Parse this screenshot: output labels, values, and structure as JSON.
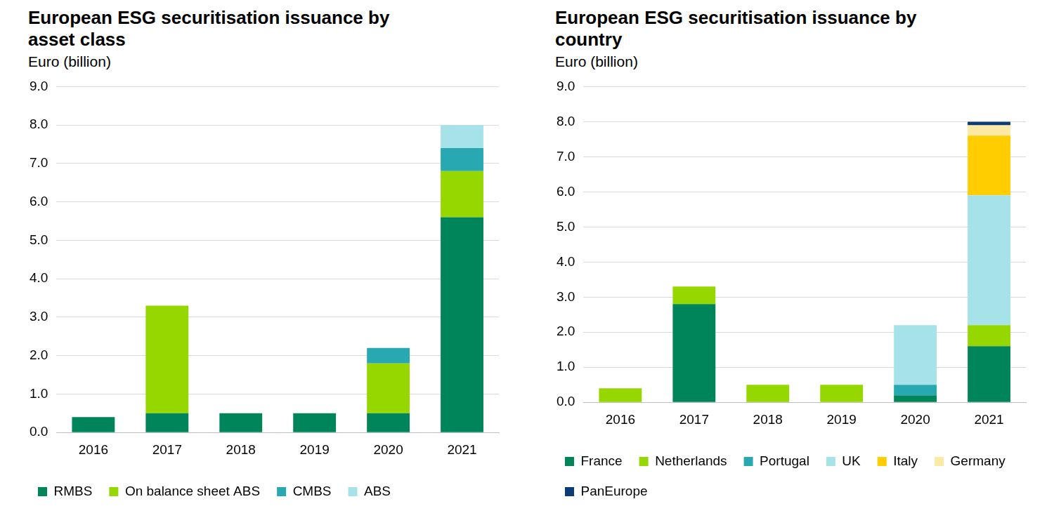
{
  "chart_data": [
    {
      "type": "bar",
      "title": "European ESG securitisation issuance by asset class",
      "subtitle": "Euro (billion)",
      "categories": [
        "2016",
        "2017",
        "2018",
        "2019",
        "2020",
        "2021"
      ],
      "series": [
        {
          "name": "RMBS",
          "color": "#00845a",
          "values": [
            0.4,
            0.5,
            0.5,
            0.5,
            0.5,
            5.6
          ]
        },
        {
          "name": "On balance sheet ABS",
          "color": "#97d700",
          "values": [
            0,
            2.8,
            0,
            0,
            1.3,
            1.2
          ]
        },
        {
          "name": "CMBS",
          "color": "#28a8b0",
          "values": [
            0,
            0,
            0,
            0,
            0.4,
            0.6
          ]
        },
        {
          "name": "ABS",
          "color": "#a6e3e8",
          "values": [
            0,
            0,
            0,
            0,
            0,
            0.6
          ]
        }
      ],
      "stacked": true,
      "ylim": [
        0,
        9
      ],
      "yticks": [
        {
          "value": 0,
          "label": "0.0"
        },
        {
          "value": 1,
          "label": "1.0"
        },
        {
          "value": 2,
          "label": "2.0"
        },
        {
          "value": 3,
          "label": "3.0"
        },
        {
          "value": 4,
          "label": "4.0"
        },
        {
          "value": 5,
          "label": "5.0"
        },
        {
          "value": 6,
          "label": "6.0"
        },
        {
          "value": 7,
          "label": "7.0"
        },
        {
          "value": 8,
          "label": "8.0"
        },
        {
          "value": 9,
          "label": "9.0"
        }
      ],
      "grid": true,
      "legend": "bottom"
    },
    {
      "type": "bar",
      "title": "European ESG securitisation issuance by country",
      "subtitle": "Euro (billion)",
      "categories": [
        "2016",
        "2017",
        "2018",
        "2019",
        "2020",
        "2021"
      ],
      "series": [
        {
          "name": "France",
          "color": "#00845a",
          "values": [
            0,
            2.8,
            0,
            0,
            0.2,
            1.6
          ]
        },
        {
          "name": "Netherlands",
          "color": "#97d700",
          "values": [
            0.4,
            0.5,
            0.5,
            0.5,
            0,
            0.6
          ]
        },
        {
          "name": "Portugal",
          "color": "#28a8b0",
          "values": [
            0,
            0,
            0,
            0,
            0.3,
            0
          ]
        },
        {
          "name": "UK",
          "color": "#a6e3e8",
          "values": [
            0,
            0,
            0,
            0,
            1.7,
            3.7
          ]
        },
        {
          "name": "Italy",
          "color": "#ffcd00",
          "values": [
            0,
            0,
            0,
            0,
            0,
            1.7
          ]
        },
        {
          "name": "Germany",
          "color": "#fde9a6",
          "values": [
            0,
            0,
            0,
            0,
            0,
            0.3
          ]
        },
        {
          "name": "PanEurope",
          "color": "#0c3c78",
          "values": [
            0,
            0,
            0,
            0,
            0,
            0.1
          ]
        }
      ],
      "stacked": true,
      "ylim": [
        0,
        9
      ],
      "yticks": [
        {
          "value": 0,
          "label": "0.0"
        },
        {
          "value": 1,
          "label": "1.0"
        },
        {
          "value": 2,
          "label": "2.0"
        },
        {
          "value": 3,
          "label": "3.0"
        },
        {
          "value": 4,
          "label": "4.0"
        },
        {
          "value": 5,
          "label": "5.0"
        },
        {
          "value": 6,
          "label": "6.0"
        },
        {
          "value": 7,
          "label": "7.0"
        },
        {
          "value": 8,
          "label": "8.0"
        },
        {
          "value": 9,
          "label": "9.0"
        }
      ],
      "grid": true,
      "legend": "bottom"
    }
  ]
}
